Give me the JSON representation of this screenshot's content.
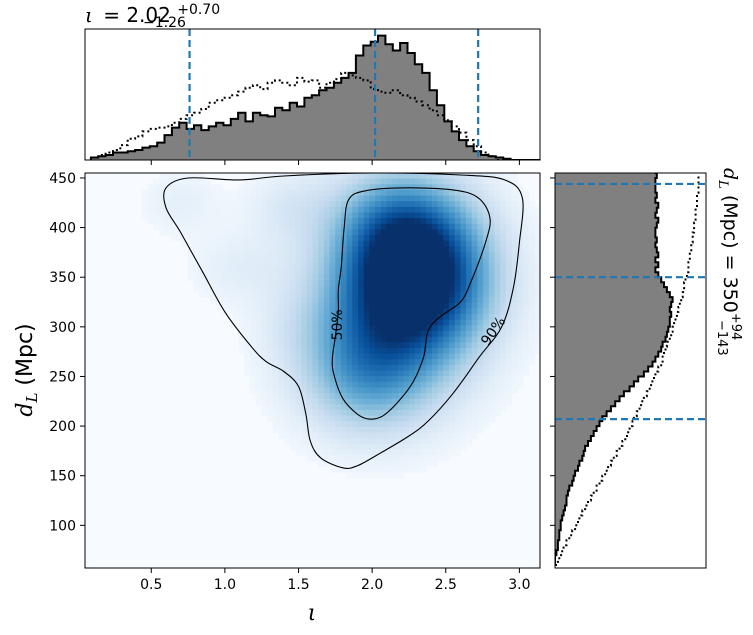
{
  "chart_data": [
    {
      "type": "histogram",
      "panel": "top-marginal",
      "title_var": "ι",
      "title_eq": "= 2.02",
      "title_sup": "+0.70",
      "title_sub": "−1.26",
      "xlim": [
        0.05,
        3.14
      ],
      "bin_edges_start": 0.09,
      "bin_width": 0.05,
      "filled_counts": [
        0.02,
        0.03,
        0.04,
        0.06,
        0.06,
        0.07,
        0.08,
        0.1,
        0.11,
        0.14,
        0.2,
        0.26,
        0.3,
        0.25,
        0.28,
        0.24,
        0.27,
        0.3,
        0.28,
        0.33,
        0.38,
        0.31,
        0.38,
        0.36,
        0.35,
        0.42,
        0.4,
        0.46,
        0.43,
        0.5,
        0.52,
        0.56,
        0.58,
        0.62,
        0.66,
        0.7,
        0.84,
        0.92,
        0.95,
        1.0,
        0.93,
        0.88,
        0.94,
        0.86,
        0.77,
        0.7,
        0.56,
        0.44,
        0.31,
        0.23,
        0.16,
        0.11,
        0.07,
        0.04,
        0.03,
        0.02,
        0.01,
        0.0,
        0.0,
        0.0,
        0.0
      ],
      "dotted_prior": [
        0.02,
        0.04,
        0.06,
        0.08,
        0.12,
        0.17,
        0.19,
        0.23,
        0.25,
        0.26,
        0.27,
        0.3,
        0.33,
        0.36,
        0.38,
        0.41,
        0.46,
        0.48,
        0.5,
        0.52,
        0.55,
        0.58,
        0.6,
        0.57,
        0.62,
        0.64,
        0.62,
        0.6,
        0.66,
        0.63,
        0.64,
        0.58,
        0.62,
        0.65,
        0.7,
        0.68,
        0.66,
        0.64,
        0.57,
        0.55,
        0.54,
        0.56,
        0.52,
        0.5,
        0.47,
        0.44,
        0.4,
        0.36,
        0.32,
        0.27,
        0.22,
        0.16,
        0.11,
        0.06,
        0.03,
        0.0,
        0.0,
        0.0,
        0.0,
        0.0,
        0.0
      ],
      "quantile_lines": [
        0.76,
        2.02,
        2.72
      ],
      "line_color": "#1f77b4",
      "fill_color": "#808080"
    },
    {
      "type": "heatmap",
      "panel": "main-2d-density",
      "xlabel": "ι",
      "ylabel_main": "d",
      "ylabel_sub": "L",
      "ylabel_rest": " (Mpc)",
      "xlim": [
        0.05,
        3.14
      ],
      "ylim": [
        57,
        455
      ],
      "xticks": [
        "0.5",
        "1.0",
        "1.5",
        "2.0",
        "2.5",
        "3.0"
      ],
      "xtick_values": [
        0.5,
        1.0,
        1.5,
        2.0,
        2.5,
        3.0
      ],
      "yticks": [
        "100",
        "150",
        "200",
        "250",
        "300",
        "350",
        "400",
        "450"
      ],
      "ytick_values": [
        100,
        150,
        200,
        250,
        300,
        350,
        400,
        450
      ],
      "colormap": "Blues",
      "density_peaks": [
        {
          "x": 2.32,
          "y": 350,
          "weight": 1.0
        },
        {
          "x": 2.1,
          "y": 300,
          "weight": 0.55
        },
        {
          "x": 2.18,
          "y": 400,
          "weight": 0.5
        },
        {
          "x": 1.95,
          "y": 250,
          "weight": 0.3
        },
        {
          "x": 1.45,
          "y": 420,
          "weight": 0.1
        },
        {
          "x": 1.1,
          "y": 360,
          "weight": 0.07
        },
        {
          "x": 0.7,
          "y": 425,
          "weight": 0.06
        },
        {
          "x": 1.5,
          "y": 300,
          "weight": 0.05
        }
      ],
      "contour_labels": [
        "50%",
        "90%"
      ],
      "contour_50": [
        [
          1.77,
          337
        ],
        [
          1.79,
          360
        ],
        [
          1.81,
          400
        ],
        [
          1.84,
          428
        ],
        [
          1.95,
          437
        ],
        [
          2.2,
          440
        ],
        [
          2.55,
          438
        ],
        [
          2.72,
          430
        ],
        [
          2.8,
          410
        ],
        [
          2.77,
          385
        ],
        [
          2.67,
          345
        ],
        [
          2.6,
          325
        ],
        [
          2.46,
          310
        ],
        [
          2.38,
          296
        ],
        [
          2.35,
          270
        ],
        [
          2.28,
          245
        ],
        [
          2.18,
          225
        ],
        [
          2.07,
          210
        ],
        [
          1.98,
          207
        ],
        [
          1.9,
          212
        ],
        [
          1.8,
          228
        ],
        [
          1.74,
          252
        ],
        [
          1.73,
          268
        ],
        [
          1.75,
          290
        ],
        [
          1.77,
          315
        ]
      ],
      "contour_90": [
        [
          1.1,
          448
        ],
        [
          1.4,
          452
        ],
        [
          2.0,
          455
        ],
        [
          2.6,
          453
        ],
        [
          2.9,
          448
        ],
        [
          3.02,
          430
        ],
        [
          3.0,
          385
        ],
        [
          2.96,
          340
        ],
        [
          2.88,
          300
        ],
        [
          2.73,
          270
        ],
        [
          2.55,
          233
        ],
        [
          2.38,
          205
        ],
        [
          2.25,
          190
        ],
        [
          2.07,
          174
        ],
        [
          1.9,
          160
        ],
        [
          1.8,
          158
        ],
        [
          1.65,
          168
        ],
        [
          1.58,
          185
        ],
        [
          1.55,
          212
        ],
        [
          1.5,
          240
        ],
        [
          1.4,
          255
        ],
        [
          1.28,
          265
        ],
        [
          1.18,
          280
        ],
        [
          1.0,
          315
        ],
        [
          0.85,
          355
        ],
        [
          0.7,
          395
        ],
        [
          0.6,
          420
        ],
        [
          0.6,
          440
        ],
        [
          0.75,
          450
        ]
      ]
    },
    {
      "type": "histogram",
      "panel": "right-marginal",
      "orientation": "horizontal",
      "title_var": "d",
      "title_var_sub": "L",
      "title_eq": " (Mpc) = 350",
      "title_sup": "+94",
      "title_sub": "−143",
      "ylim": [
        57,
        455
      ],
      "bin_edges_start": 60,
      "bin_width": 5,
      "filled_counts": [
        0.0,
        0.0,
        0.01,
        0.02,
        0.02,
        0.03,
        0.03,
        0.04,
        0.04,
        0.05,
        0.06,
        0.07,
        0.08,
        0.08,
        0.09,
        0.1,
        0.12,
        0.13,
        0.14,
        0.16,
        0.17,
        0.19,
        0.2,
        0.21,
        0.23,
        0.25,
        0.27,
        0.29,
        0.31,
        0.33,
        0.36,
        0.39,
        0.42,
        0.45,
        0.48,
        0.52,
        0.55,
        0.58,
        0.62,
        0.65,
        0.68,
        0.7,
        0.72,
        0.74,
        0.75,
        0.77,
        0.78,
        0.79,
        0.8,
        0.8,
        0.81,
        0.8,
        0.81,
        0.82,
        0.8,
        0.78,
        0.76,
        0.74,
        0.72,
        0.7,
        0.72,
        0.7,
        0.72,
        0.71,
        0.7,
        0.71,
        0.7,
        0.7,
        0.71,
        0.72,
        0.7,
        0.71,
        0.72,
        0.7,
        0.71,
        0.7,
        0.7,
        0.7,
        0.71,
        0.7
      ],
      "dotted_prior": [
        0.02,
        0.03,
        0.05,
        0.06,
        0.08,
        0.1,
        0.12,
        0.14,
        0.16,
        0.17,
        0.19,
        0.21,
        0.23,
        0.25,
        0.27,
        0.29,
        0.31,
        0.33,
        0.35,
        0.37,
        0.39,
        0.41,
        0.43,
        0.45,
        0.47,
        0.49,
        0.51,
        0.52,
        0.54,
        0.55,
        0.57,
        0.59,
        0.6,
        0.62,
        0.64,
        0.66,
        0.67,
        0.69,
        0.7,
        0.72,
        0.74,
        0.75,
        0.76,
        0.77,
        0.78,
        0.8,
        0.81,
        0.82,
        0.83,
        0.84,
        0.85,
        0.86,
        0.87,
        0.88,
        0.89,
        0.9,
        0.9,
        0.91,
        0.92,
        0.93,
        0.93,
        0.94,
        0.94,
        0.95,
        0.95,
        0.96,
        0.96,
        0.97,
        0.97,
        0.98,
        0.98,
        0.98,
        0.99,
        0.99,
        0.99,
        1.0,
        1.0,
        1.0,
        1.0,
        1.0
      ],
      "quantile_lines": [
        207,
        350,
        444
      ],
      "line_color": "#1f77b4",
      "fill_color": "#808080"
    }
  ]
}
